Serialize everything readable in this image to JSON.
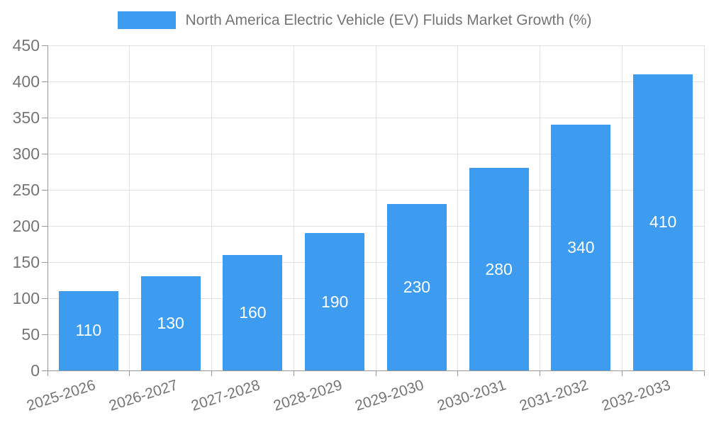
{
  "legend": {
    "label": "North America Electric Vehicle (EV) Fluids Market Growth (%)"
  },
  "colors": {
    "bar": "#3D9CF0",
    "axis": "#999999",
    "grid": "#E2E2E2",
    "text": "#757575",
    "bar_label": "#FFFFFF",
    "background": "#FFFFFF"
  },
  "chart_data": {
    "type": "bar",
    "title": "North America Electric Vehicle (EV) Fluids Market Growth (%)",
    "categories": [
      "2025-2026",
      "2026-2027",
      "2027-2028",
      "2028-2029",
      "2029-2030",
      "2030-2031",
      "2031-2032",
      "2032-2033"
    ],
    "values": [
      110,
      130,
      160,
      190,
      230,
      280,
      340,
      410
    ],
    "xlabel": "",
    "ylabel": "",
    "ylim": [
      0,
      450
    ],
    "ytick_interval": 50,
    "yticks": [
      0,
      50,
      100,
      150,
      200,
      250,
      300,
      350,
      400,
      450
    ],
    "grid": true,
    "legend_position": "top",
    "value_labels": "inside-center"
  }
}
